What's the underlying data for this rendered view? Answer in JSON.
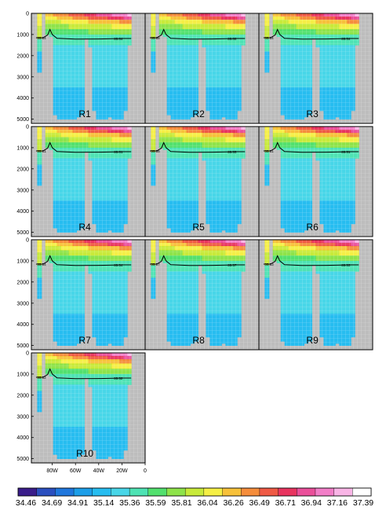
{
  "chart_data": {
    "type": "heatmap",
    "panels": [
      {
        "label": "R1",
        "contour_label": "35.64"
      },
      {
        "label": "R2",
        "contour_label": "35.68"
      },
      {
        "label": "R3",
        "contour_label": "35.54"
      },
      {
        "label": "R4",
        "contour_label": "35.61"
      },
      {
        "label": "R5",
        "contour_label": "35.55"
      },
      {
        "label": "R6",
        "contour_label": "35.51"
      },
      {
        "label": "R7",
        "contour_label": "35.54"
      },
      {
        "label": "R8",
        "contour_label": "35.57"
      },
      {
        "label": "R9",
        "contour_label": "35.53"
      },
      {
        "label": "R10",
        "contour_label": "35.52"
      }
    ],
    "y_axis": {
      "ticks": [
        "0",
        "1000",
        "2000",
        "3000",
        "4000",
        "5000"
      ],
      "range": [
        0,
        5200
      ],
      "direction": "depth, increasing downward"
    },
    "x_axis": {
      "ticks": [
        "80W",
        "60W",
        "40W",
        "20W",
        "0"
      ],
      "range": [
        -98,
        0
      ]
    },
    "colorbar": {
      "labels": [
        "34.46",
        "34.69",
        "34.91",
        "35.14",
        "35.36",
        "35.59",
        "35.81",
        "36.04",
        "36.26",
        "36.49",
        "36.71",
        "36.94",
        "37.16",
        "37.39"
      ],
      "colors": [
        "#3a1d8a",
        "#2b4fbf",
        "#2077dd",
        "#1d9ee8",
        "#27bdf0",
        "#48d6e8",
        "#4ee3b4",
        "#52e06e",
        "#8ee34a",
        "#c8ea3a",
        "#f5ef45",
        "#f7c13a",
        "#f58d3c",
        "#ef5a45",
        "#e8345f",
        "#ea4f9a",
        "#f27ec8",
        "#f9b5e6",
        "#ffffff"
      ]
    },
    "land_color": "#bdbdbd"
  }
}
